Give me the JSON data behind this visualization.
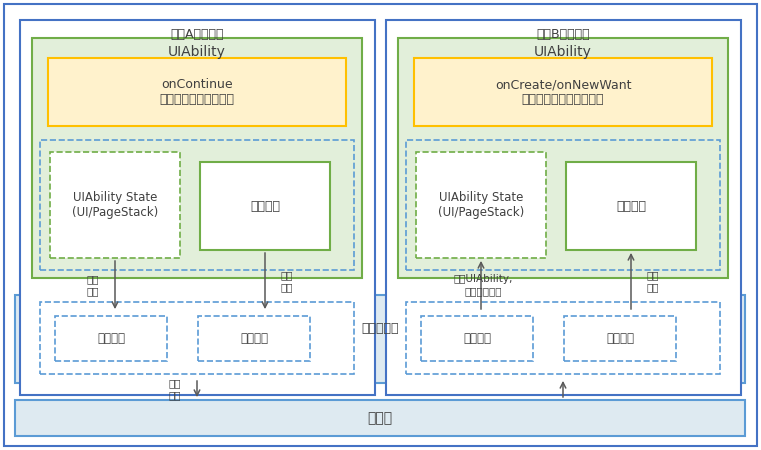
{
  "device_a_label": "设备A（源端）",
  "device_b_label": "设备B（对端）",
  "uiability_label": "UIAbility",
  "on_continue_label": "onContinue\n保存待恢复的任务数据",
  "on_create_label": "onCreate/onNewWant\n恢复任务数据和页面状态",
  "ui_state_label": "UIAbility State\n(UI/PageStack)",
  "business_label": "业务内容",
  "app_dispatch_label": "应用调度",
  "data_mgmt_label": "数据管理",
  "framework_label": "分布式框架",
  "bus_label": "软总线",
  "save_state_label": "保存\n状态",
  "save_data_label": "保存\n数据",
  "launch_label": "启动UIAbility,\n获取页面状态",
  "fetch_label": "获取\n数据",
  "send_label": "发送\n数据",
  "colors": {
    "outer_border": "#4472c4",
    "outer_bg": "#ffffff",
    "uiability_border": "#70ad47",
    "uiability_bg": "#e2efda",
    "oncontinue_border": "#ffc000",
    "oncontinue_bg": "#fff2cc",
    "state_dashed_border": "#70ad47",
    "state_bg": "#ffffff",
    "biz_border": "#70ad47",
    "biz_bg": "#ffffff",
    "framework_border": "#5b9bd5",
    "framework_bg": "#deeaf1",
    "dashed_inner_border": "#5b9bd5",
    "dashed_inner_bg": "#deeaf1",
    "small_dashed_border": "#5b9bd5",
    "small_box_border": "#5b9bd5",
    "small_box_bg": "#ffffff",
    "bus_border": "#5b9bd5",
    "bus_bg": "#deeaf1",
    "arrow_color": "#595959",
    "text_color": "#404040"
  }
}
